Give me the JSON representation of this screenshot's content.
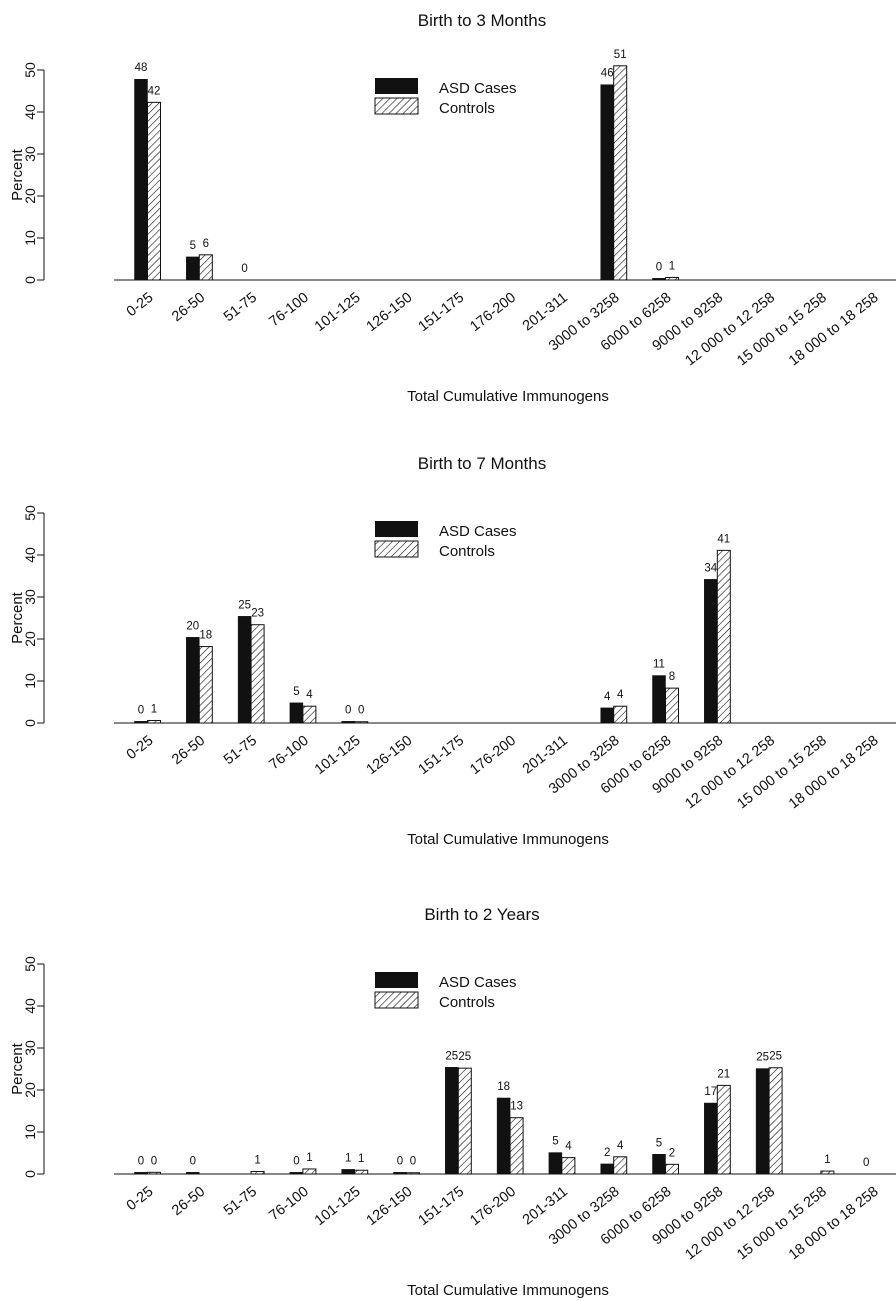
{
  "chart_data": [
    {
      "type": "bar",
      "title": "Birth to 3 Months",
      "xlabel": "Total Cumulative Immunogens",
      "ylabel": "Percent",
      "ylim": [
        0,
        50
      ],
      "yticks": [
        0,
        10,
        20,
        30,
        40,
        50
      ],
      "grid": false,
      "legend_position": "top-center",
      "categories": [
        "0-25",
        "26-50",
        "51-75",
        "76-100",
        "101-125",
        "126-150",
        "151-175",
        "176-200",
        "201-311",
        "3000 to 3258",
        "6000 to 6258",
        "9000 to 9258",
        "12 000 to 12 258",
        "15 000 to 15 258",
        "18 000 to 18 258"
      ],
      "series": [
        {
          "name": "ASD Cases",
          "values": [
            47.8,
            5.5,
            0,
            0,
            0,
            0,
            0,
            0,
            0,
            46.5,
            0.4,
            0,
            0,
            0,
            0
          ],
          "labels": [
            "48",
            "5",
            "0",
            "",
            "",
            "",
            "",
            "",
            "",
            "46",
            "0",
            "",
            "",
            "",
            ""
          ]
        },
        {
          "name": "Controls",
          "values": [
            42.3,
            6.0,
            0,
            0,
            0,
            0,
            0,
            0,
            0,
            51.0,
            0.6,
            0,
            0,
            0,
            0
          ],
          "labels": [
            "42",
            "6",
            "",
            "",
            "",
            "",
            "",
            "",
            "",
            "51",
            "1",
            "",
            "",
            "",
            ""
          ]
        }
      ]
    },
    {
      "type": "bar",
      "title": "Birth to 7 Months",
      "xlabel": "Total Cumulative Immunogens",
      "ylabel": "Percent",
      "ylim": [
        0,
        50
      ],
      "yticks": [
        0,
        10,
        20,
        30,
        40,
        50
      ],
      "grid": false,
      "legend_position": "top-center",
      "categories": [
        "0-25",
        "26-50",
        "51-75",
        "76-100",
        "101-125",
        "126-150",
        "151-175",
        "176-200",
        "201-311",
        "3000 to 3258",
        "6000 to 6258",
        "9000 to 9258",
        "12 000 to 12 258",
        "15 000 to 15 258",
        "18 000 to 18 258"
      ],
      "series": [
        {
          "name": "ASD Cases",
          "values": [
            0.4,
            20.4,
            25.4,
            4.8,
            0.4,
            0,
            0,
            0,
            0,
            3.6,
            11.3,
            34.2,
            0,
            0,
            0
          ],
          "labels": [
            "0",
            "20",
            "25",
            "5",
            "0",
            "",
            "",
            "",
            "",
            "4",
            "11",
            "34",
            "",
            "",
            ""
          ]
        },
        {
          "name": "Controls",
          "values": [
            0.6,
            18.2,
            23.4,
            4.0,
            0.3,
            0,
            0,
            0,
            0,
            4.0,
            8.3,
            41.1,
            0,
            0,
            0
          ],
          "labels": [
            "1",
            "18",
            "23",
            "4",
            "0",
            "",
            "",
            "",
            "",
            "4",
            "8",
            "41",
            "",
            "",
            ""
          ]
        }
      ]
    },
    {
      "type": "bar",
      "title": "Birth to 2 Years",
      "xlabel": "Total Cumulative Immunogens",
      "ylabel": "Percent",
      "ylim": [
        0,
        50
      ],
      "yticks": [
        0,
        10,
        20,
        30,
        40,
        50
      ],
      "grid": false,
      "legend_position": "top-center",
      "categories": [
        "0-25",
        "26-50",
        "51-75",
        "76-100",
        "101-125",
        "126-150",
        "151-175",
        "176-200",
        "201-311",
        "3000 to 3258",
        "6000 to 6258",
        "9000 to 9258",
        "12 000 to 12 258",
        "15 000 to 15 258",
        "18 000 to 18 258"
      ],
      "series": [
        {
          "name": "ASD Cases",
          "values": [
            0.4,
            0.4,
            0,
            0.4,
            1.1,
            0.4,
            25.4,
            18.1,
            5.1,
            2.4,
            4.7,
            16.9,
            25.1,
            0,
            0
          ],
          "labels": [
            "0",
            "0",
            "",
            "0",
            "1",
            "0",
            "25",
            "18",
            "5",
            "2",
            "5",
            "17",
            "25",
            "",
            "0"
          ]
        },
        {
          "name": "Controls",
          "values": [
            0.4,
            0,
            0.6,
            1.2,
            0.9,
            0.3,
            25.2,
            13.4,
            3.9,
            4.1,
            2.3,
            21.1,
            25.3,
            0.7,
            0
          ],
          "labels": [
            "0",
            "",
            "1",
            "1",
            "1",
            "0",
            "25",
            "13",
            "4",
            "4",
            "2",
            "21",
            "25",
            "1",
            ""
          ]
        }
      ]
    }
  ]
}
